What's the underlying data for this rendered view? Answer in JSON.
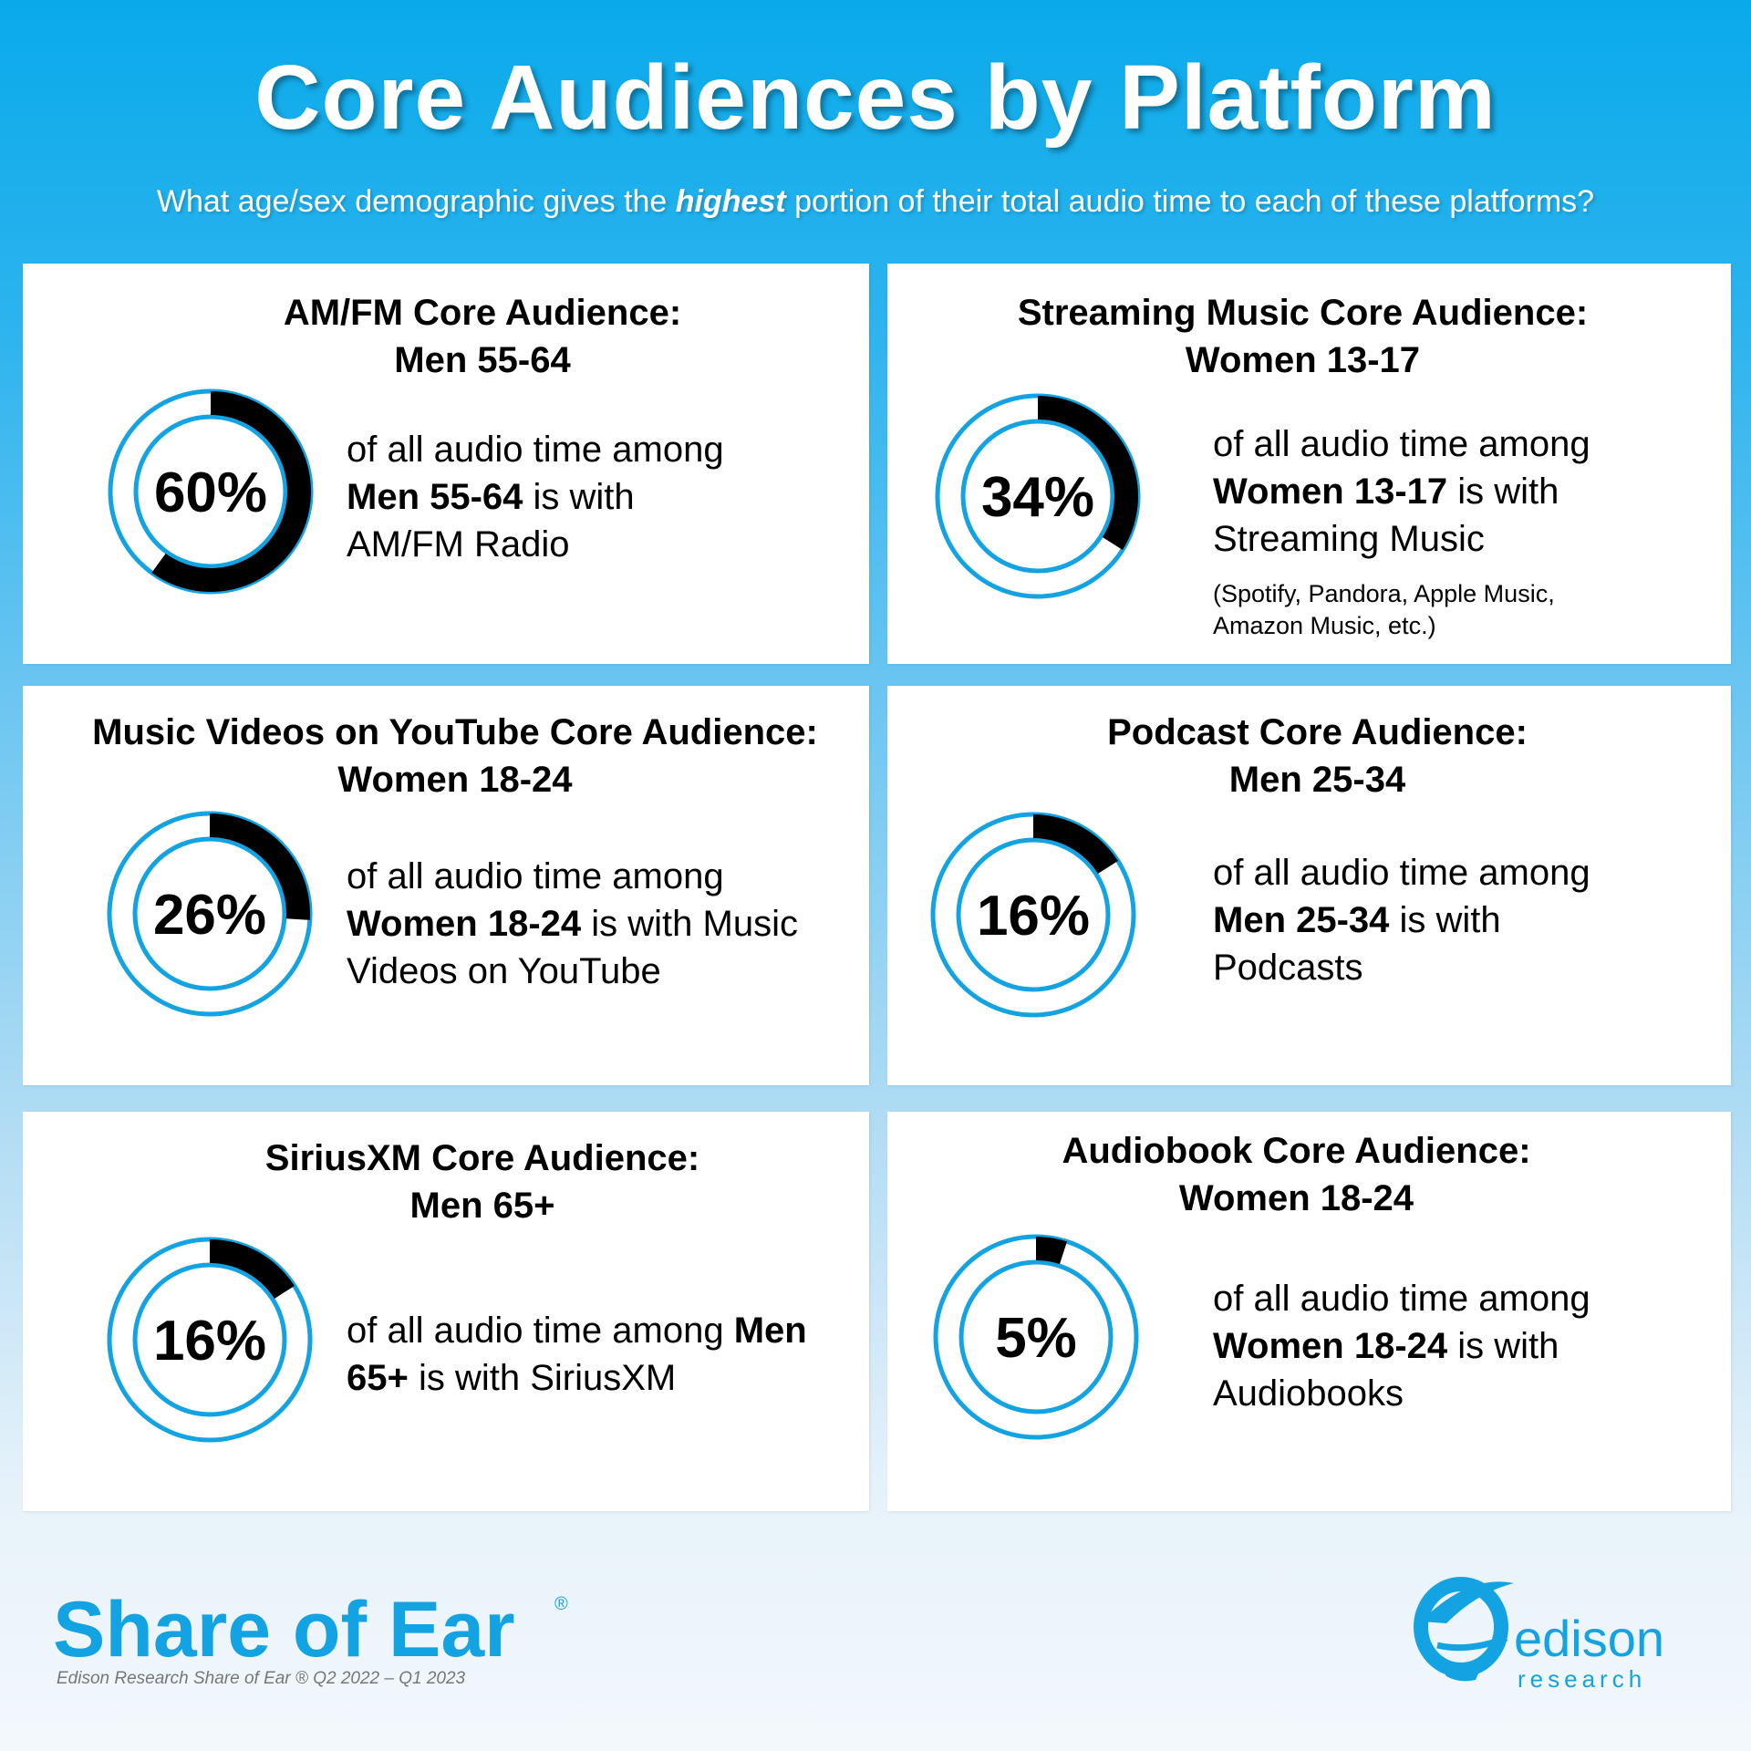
{
  "header": {
    "title": "Core Audiences by Platform",
    "subtitle_pre": "What age/sex demographic gives the ",
    "subtitle_em": "highest",
    "subtitle_post": " portion of their total audio time to each of these platforms?"
  },
  "colors": {
    "accent": "#13a3e3",
    "filled": "#000000",
    "ring": "#13a3e3",
    "panel": "#ffffff"
  },
  "chart_data": {
    "type": "donut",
    "title": "Core Audiences by Platform",
    "categories": [
      "AM/FM",
      "Streaming Music",
      "Music Videos on YouTube",
      "Podcast",
      "SiriusXM",
      "Audiobook"
    ],
    "values": [
      60,
      34,
      26,
      16,
      16,
      5
    ],
    "unit": "%",
    "panels": [
      {
        "title": "AM/FM Core Audience:",
        "audience": "Men 55-64",
        "value": 60,
        "label": "60%",
        "desc_pre": "of all audio time among ",
        "desc_bold": "Men 55-64",
        "desc_post": " is with AM/FM Radio"
      },
      {
        "title": "Streaming Music Core Audience:",
        "audience": "Women 13-17",
        "value": 34,
        "label": "34%",
        "desc_pre": "of all audio time among ",
        "desc_bold": "Women 13-17",
        "desc_post": " is with Streaming Music",
        "note": "(Spotify, Pandora, Apple Music, Amazon Music, etc.)"
      },
      {
        "title": "Music Videos on YouTube Core Audience:",
        "audience": "Women 18-24",
        "value": 26,
        "label": "26%",
        "desc_pre": "of all audio time among ",
        "desc_bold": "Women 18-24",
        "desc_post": " is with Music Videos on YouTube"
      },
      {
        "title": "Podcast Core Audience:",
        "audience": "Men 25-34",
        "value": 16,
        "label": "16%",
        "desc_pre": "of all audio time among ",
        "desc_bold": "Men 25-34",
        "desc_post": " is with Podcasts"
      },
      {
        "title": "SiriusXM Core Audience:",
        "audience": "Men 65+",
        "value": 16,
        "label": "16%",
        "desc_pre": "of all audio time among ",
        "desc_bold": "Men 65+",
        "desc_post": " is with SiriusXM"
      },
      {
        "title": "Audiobook Core Audience:",
        "audience": "Women 18-24",
        "value": 5,
        "label": "5%",
        "desc_pre": "of all audio time among ",
        "desc_bold": "Women 18-24",
        "desc_post": " is with Audiobooks"
      }
    ]
  },
  "footer": {
    "brand": "Share of Ear",
    "registered": "®",
    "source": "Edison Research Share of Ear ® Q2 2022 – Q1 2023",
    "logo_name": "edison",
    "logo_sub": "research"
  }
}
